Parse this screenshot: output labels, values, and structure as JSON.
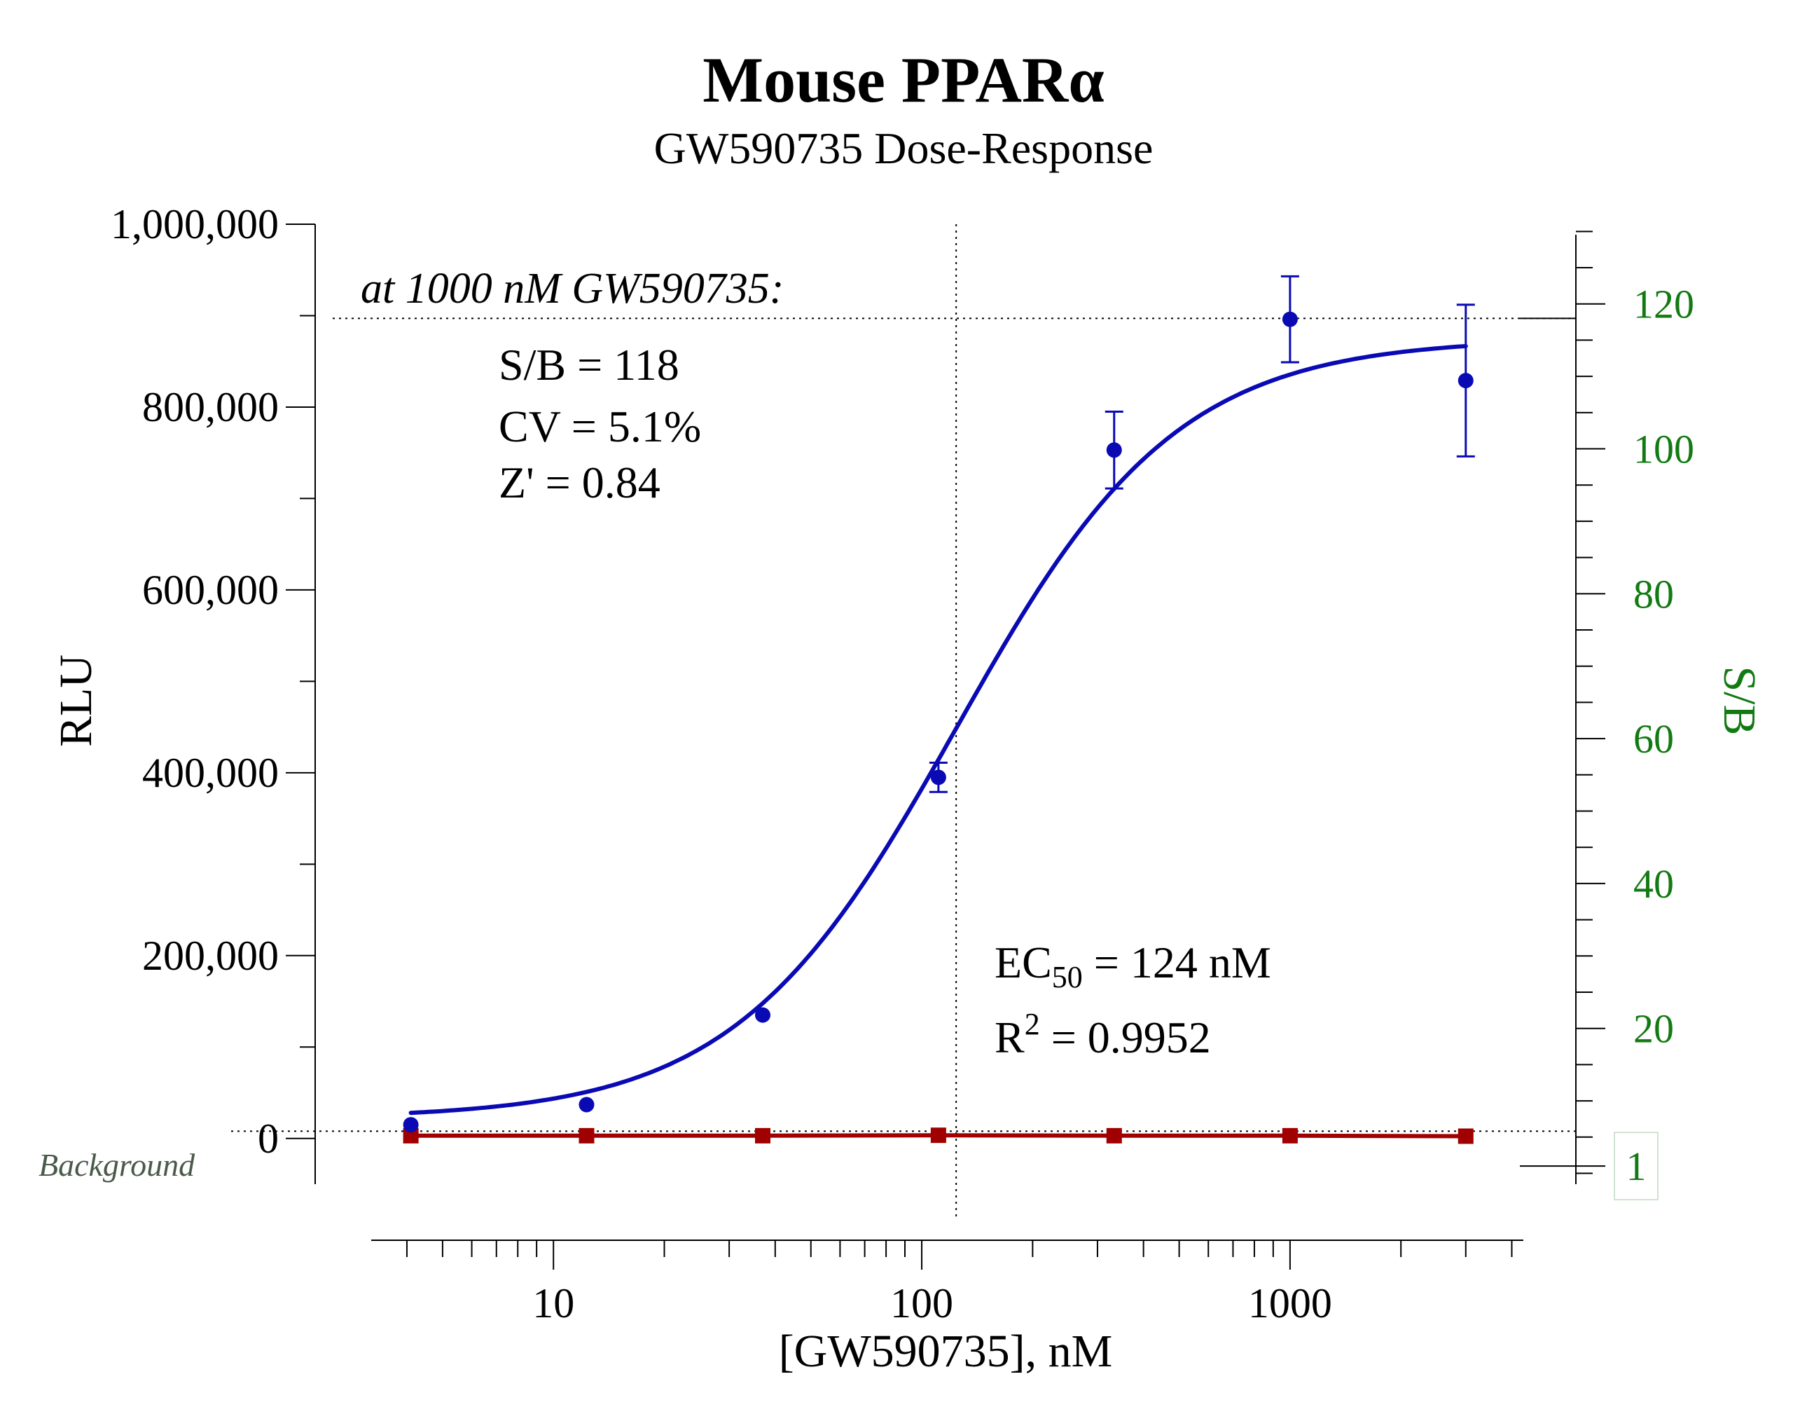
{
  "chart_data": {
    "type": "scatter",
    "title": "Mouse PPARα",
    "subtitle": "GW590735 Dose-Response",
    "xlabel": "[GW590735], nM",
    "ylabel": "RLU",
    "y2label": "S/B",
    "x_scale": "log",
    "xlim": [
      3.2,
      4300
    ],
    "ylim": [
      -50000,
      1000000
    ],
    "y2lim": [
      -1.5,
      131
    ],
    "x_ticks": [
      10,
      100,
      1000
    ],
    "x_tick_labels": [
      "10",
      "100",
      "1000"
    ],
    "y_ticks": [
      0,
      200000,
      400000,
      600000,
      800000,
      1000000
    ],
    "y_tick_labels": [
      "0",
      "200,000",
      "400,000",
      "600,000",
      "800,000",
      "1,000,000"
    ],
    "y2_ticks": [
      20,
      40,
      60,
      80,
      100,
      120
    ],
    "y2_tick_labels": [
      "20",
      "40",
      "60",
      "80",
      "100",
      "120"
    ],
    "y2_marker": {
      "value": 1,
      "label": "1"
    },
    "background_label": "Background",
    "annotation_header": "at 1000 nM GW590735:",
    "annotation_lines": [
      "S/B = 118",
      "CV = 5.1%",
      "Z' = 0.84"
    ],
    "ec50_label": "EC",
    "ec50_sub": "50",
    "ec50_value": " = 124 nM",
    "r2_label": "R",
    "r2_sup": "2",
    "r2_value": " = 0.9952",
    "ec50": 124,
    "ref_line_rlu": 897000,
    "grid": false,
    "colors": {
      "agonist": "#0a0ab4",
      "background": "#a00000",
      "sb_axis": "#137a13",
      "background_label": "#4a5a4a"
    },
    "series": [
      {
        "marker": "circle",
        "color": "#0a0ab4",
        "x": [
          4.1,
          12.3,
          37,
          111,
          333,
          1000,
          3000
        ],
        "y": [
          15000,
          37000,
          135000,
          395000,
          753000,
          896000,
          829000
        ],
        "err": [
          0,
          0,
          0,
          16000,
          42000,
          47000,
          83000
        ]
      },
      {
        "marker": "square",
        "color": "#a00000",
        "x": [
          4.1,
          12.3,
          37,
          111,
          333,
          1000,
          3000
        ],
        "y": [
          3000,
          3000,
          3000,
          3500,
          3000,
          3000,
          2500
        ]
      }
    ],
    "fit": {
      "bottom": 22000,
      "top": 875000,
      "ec50": 124,
      "hill": 1.45
    }
  }
}
